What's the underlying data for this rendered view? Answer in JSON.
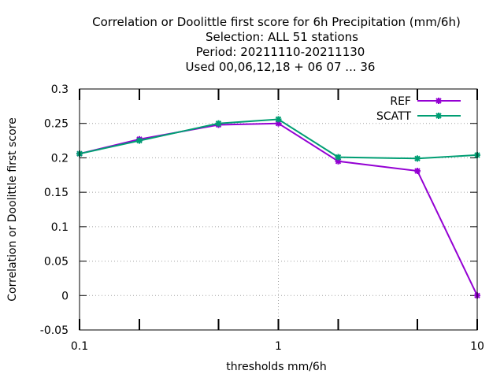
{
  "chart_data": {
    "type": "line",
    "title_lines": [
      "Correlation or Doolittle first score  for 6h Precipitation (mm/6h)",
      "Selection: ALL     51 stations",
      "Period: 20211110-20211130",
      "Used  00,06,12,18 + 06 07 ... 36"
    ],
    "xlabel": "thresholds mm/6h",
    "ylabel": "Correlation or Doolittle first score",
    "x_scale": "log",
    "xlim": [
      0.1,
      10
    ],
    "ylim": [
      -0.05,
      0.3
    ],
    "x_ticks": [
      0.1,
      1,
      10
    ],
    "x_tick_labels": [
      "0.1",
      "1",
      "10"
    ],
    "x_minor_ticks": [
      0.2,
      0.5,
      2,
      5
    ],
    "y_ticks": [
      -0.05,
      0,
      0.05,
      0.1,
      0.15,
      0.2,
      0.25,
      0.3
    ],
    "y_tick_labels": [
      "-0.05",
      "0",
      "0.05",
      "0.1",
      "0.15",
      "0.2",
      "0.25",
      "0.3"
    ],
    "grid": true,
    "legend_position": "top-right",
    "x": [
      0.1,
      0.2,
      0.5,
      1,
      2,
      5,
      10
    ],
    "series": [
      {
        "name": "REF",
        "color": "#9400d3",
        "values": [
          0.206,
          0.227,
          0.248,
          0.25,
          0.195,
          0.181,
          0.0
        ]
      },
      {
        "name": "SCATT",
        "color": "#009e73",
        "values": [
          0.206,
          0.225,
          0.25,
          0.256,
          0.201,
          0.199,
          0.204
        ]
      }
    ]
  }
}
